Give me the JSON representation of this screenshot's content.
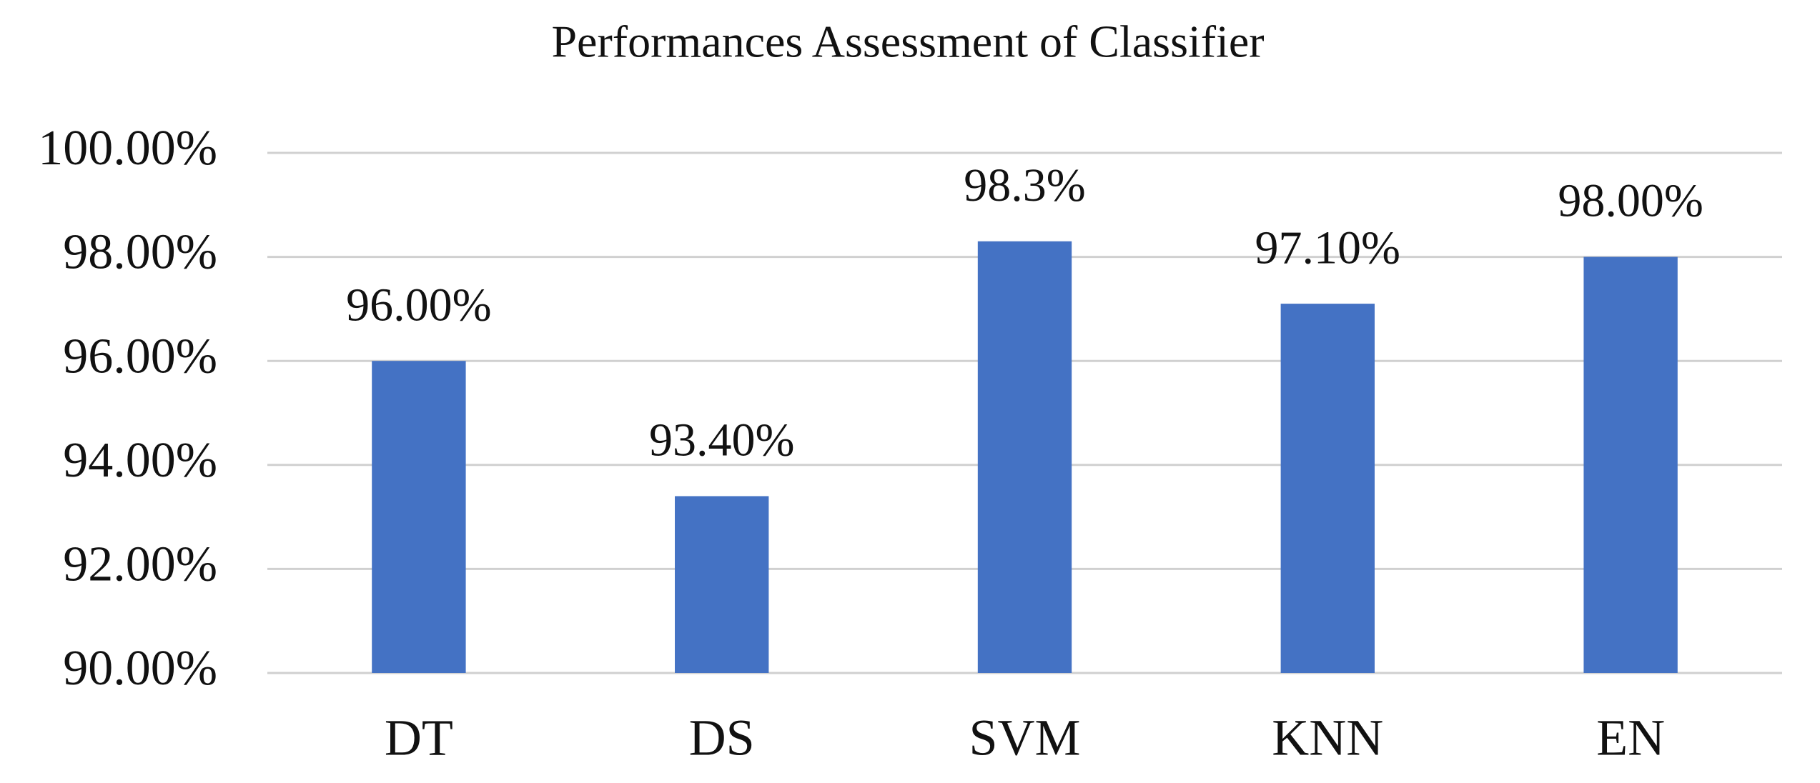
{
  "chart_data": {
    "type": "bar",
    "title": "Performances  Assessment of Classifier",
    "categories": [
      "DT",
      "DS",
      "SVM",
      "KNN",
      "EN"
    ],
    "values": [
      96.0,
      93.4,
      98.3,
      97.1,
      98.0
    ],
    "value_labels": [
      "96.00%",
      "93.40%",
      "98.3%",
      "97.10%",
      "98.00%"
    ],
    "color": "#4472c4",
    "ylim": [
      90,
      100
    ],
    "yticks": [
      {
        "value": 90,
        "label": "90.00%"
      },
      {
        "value": 92,
        "label": "92.00%"
      },
      {
        "value": 94,
        "label": "94.00%"
      },
      {
        "value": 96,
        "label": "96.00%"
      },
      {
        "value": 98,
        "label": "98.00%"
      },
      {
        "value": 100,
        "label": "100.00%"
      }
    ],
    "grid": true
  }
}
